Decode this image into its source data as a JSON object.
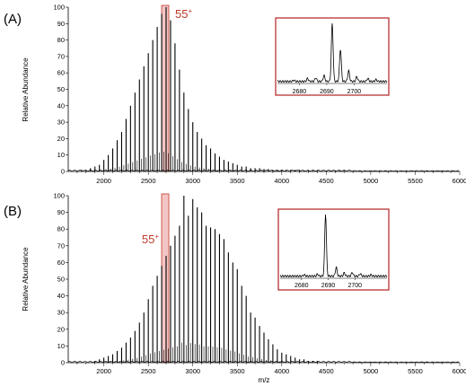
{
  "chart_data": [
    {
      "type": "bar",
      "panel_label": "(A)",
      "ylabel": "Relative Abundance",
      "xlabel": "",
      "xlim": [
        1600,
        6000
      ],
      "ylim": [
        0,
        100
      ],
      "x_ticks": [
        2000,
        2500,
        3000,
        3500,
        4000,
        4500,
        5000,
        5500,
        6000
      ],
      "y_ticks": [
        0,
        10,
        20,
        30,
        40,
        50,
        60,
        70,
        80,
        90,
        100
      ],
      "highlight": {
        "x": 2690,
        "label": "55",
        "superscript": "+"
      },
      "peaks": {
        "x": [
          1750,
          1800,
          1850,
          1900,
          1950,
          2000,
          2050,
          2100,
          2150,
          2200,
          2250,
          2300,
          2350,
          2400,
          2450,
          2500,
          2550,
          2600,
          2650,
          2700,
          2750,
          2800,
          2850,
          2900,
          2950,
          3000,
          3050,
          3100,
          3150,
          3200,
          3250,
          3300,
          3350,
          3400,
          3450,
          3500,
          3550,
          3600,
          3650,
          3700,
          3750,
          3800,
          3850,
          3900,
          3950,
          4000,
          4050,
          4100,
          4150,
          4200,
          4250,
          4300,
          4350,
          4400,
          4450,
          4500,
          4550,
          4600,
          4650,
          4700
        ],
        "y": [
          1,
          1,
          2,
          3,
          4,
          7,
          10,
          14,
          19,
          24,
          32,
          40,
          48,
          56,
          64,
          72,
          80,
          88,
          96,
          100,
          92,
          78,
          62,
          48,
          38,
          30,
          24,
          20,
          16,
          14,
          11,
          9,
          7,
          6,
          5,
          4,
          3,
          3,
          2,
          2,
          2,
          1.5,
          1.5,
          1,
          1,
          1,
          1,
          1,
          1,
          1,
          0.5,
          0.5,
          0.5,
          0.5,
          0.5,
          0.5,
          0.5,
          0.5,
          0.5,
          0.5
        ]
      },
      "inset": {
        "xlim": [
          2672,
          2712
        ],
        "ylim": [
          0,
          100
        ],
        "x_ticks": [
          2680,
          2690,
          2700
        ],
        "peaks": {
          "x": [
            2678,
            2683,
            2686,
            2689,
            2692,
            2695,
            2698,
            2701,
            2705,
            2708
          ],
          "y": [
            2,
            5,
            6,
            10,
            100,
            55,
            18,
            8,
            5,
            3
          ]
        }
      }
    },
    {
      "type": "bar",
      "panel_label": "(B)",
      "ylabel": "Relative Abundance",
      "xlabel": "m/z",
      "xlim": [
        1600,
        6000
      ],
      "ylim": [
        0,
        100
      ],
      "x_ticks": [
        2000,
        2500,
        3000,
        3500,
        4000,
        4500,
        5000,
        5500,
        6000
      ],
      "y_ticks": [
        0,
        10,
        20,
        30,
        40,
        50,
        60,
        70,
        80,
        90,
        100
      ],
      "highlight": {
        "x": 2690,
        "label": "55",
        "superscript": "+"
      },
      "peaks": {
        "x": [
          1900,
          1950,
          2000,
          2050,
          2100,
          2150,
          2200,
          2250,
          2300,
          2350,
          2400,
          2450,
          2500,
          2550,
          2600,
          2650,
          2700,
          2750,
          2800,
          2850,
          2900,
          2950,
          3000,
          3050,
          3100,
          3150,
          3200,
          3250,
          3300,
          3350,
          3400,
          3450,
          3500,
          3550,
          3600,
          3650,
          3700,
          3750,
          3800,
          3850,
          3900,
          3950,
          4000,
          4050,
          4100,
          4150,
          4200,
          4250,
          4300,
          4350,
          4400
        ],
        "y": [
          1,
          2,
          3,
          4,
          5,
          7,
          9,
          12,
          15,
          19,
          24,
          30,
          38,
          46,
          52,
          58,
          64,
          70,
          76,
          82,
          100,
          88,
          98,
          93,
          90,
          82,
          81,
          80,
          77,
          74,
          66,
          60,
          56,
          46,
          40,
          30,
          27,
          22,
          18,
          14,
          11,
          8,
          6,
          5,
          4,
          3,
          2,
          2,
          1,
          1,
          1
        ]
      },
      "inset": {
        "xlim": [
          2672,
          2712
        ],
        "ylim": [
          0,
          100
        ],
        "x_ticks": [
          2680,
          2690,
          2700
        ],
        "peaks": {
          "x": [
            2681,
            2686,
            2689,
            2693,
            2696,
            2699,
            2702,
            2706
          ],
          "y": [
            2,
            3,
            100,
            14,
            5,
            6,
            4,
            2
          ]
        }
      }
    }
  ]
}
